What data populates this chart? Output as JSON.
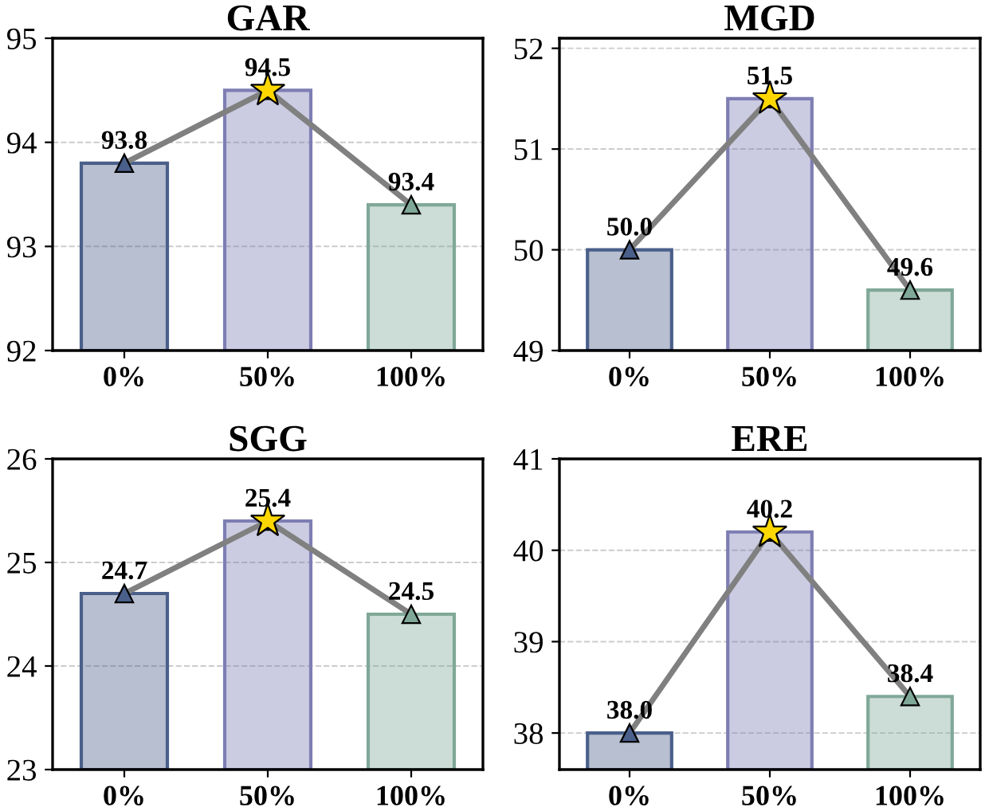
{
  "chart_data": [
    {
      "type": "bar",
      "title": "GAR",
      "categories": [
        "0%",
        "50%",
        "100%"
      ],
      "ylim": [
        92,
        95
      ],
      "yticks": [
        92,
        93,
        94,
        95
      ],
      "grid": "y",
      "series": [
        {
          "colors": [
            "#4a5f8a",
            "#7e7eb4",
            "#7fa898"
          ],
          "values": [
            93.8,
            94.5,
            93.4
          ]
        },
        {
          "type": "line",
          "color": "#808080",
          "marker": "triangle",
          "colors": [
            "#4a5f8a",
            "#7e7eb4",
            "#7fa898"
          ],
          "values": [
            93.8,
            94.5,
            93.4
          ],
          "value_labels": [
            "93.8",
            "94.5",
            "93.4"
          ]
        },
        {
          "type": "scatter",
          "color": "#ffd700",
          "marker": "star",
          "x": [
            "50%"
          ],
          "values": [
            94.5
          ]
        }
      ]
    },
    {
      "type": "bar",
      "title": "MGD",
      "categories": [
        "0%",
        "50%",
        "100%"
      ],
      "ylim": [
        49,
        52.1
      ],
      "yticks": [
        49,
        50,
        51,
        52
      ],
      "grid": "y",
      "series": [
        {
          "colors": [
            "#4a5f8a",
            "#7e7eb4",
            "#7fa898"
          ],
          "values": [
            50.0,
            51.5,
            49.6
          ]
        },
        {
          "type": "line",
          "color": "#808080",
          "marker": "triangle",
          "colors": [
            "#4a5f8a",
            "#7e7eb4",
            "#7fa898"
          ],
          "values": [
            50.0,
            51.5,
            49.6
          ],
          "value_labels": [
            "50.0",
            "51.5",
            "49.6"
          ]
        },
        {
          "type": "scatter",
          "color": "#ffd700",
          "marker": "star",
          "x": [
            "50%"
          ],
          "values": [
            51.5
          ]
        }
      ]
    },
    {
      "type": "bar",
      "title": "SGG",
      "categories": [
        "0%",
        "50%",
        "100%"
      ],
      "ylim": [
        23,
        26
      ],
      "yticks": [
        23,
        24,
        25,
        26
      ],
      "grid": "y",
      "series": [
        {
          "colors": [
            "#4a5f8a",
            "#7e7eb4",
            "#7fa898"
          ],
          "values": [
            24.7,
            25.4,
            24.5
          ]
        },
        {
          "type": "line",
          "color": "#808080",
          "marker": "triangle",
          "colors": [
            "#4a5f8a",
            "#7e7eb4",
            "#7fa898"
          ],
          "values": [
            24.7,
            25.4,
            24.5
          ],
          "value_labels": [
            "24.7",
            "25.4",
            "24.5"
          ]
        },
        {
          "type": "scatter",
          "color": "#ffd700",
          "marker": "star",
          "x": [
            "50%"
          ],
          "values": [
            25.4
          ]
        }
      ]
    },
    {
      "type": "bar",
      "title": "ERE",
      "categories": [
        "0%",
        "50%",
        "100%"
      ],
      "ylim": [
        37.6,
        41
      ],
      "yticks": [
        38,
        39,
        40,
        41
      ],
      "grid": "y",
      "series": [
        {
          "colors": [
            "#4a5f8a",
            "#7e7eb4",
            "#7fa898"
          ],
          "values": [
            38.0,
            40.2,
            38.4
          ]
        },
        {
          "type": "line",
          "color": "#808080",
          "marker": "triangle",
          "colors": [
            "#4a5f8a",
            "#7e7eb4",
            "#7fa898"
          ],
          "values": [
            38.0,
            40.2,
            38.4
          ],
          "value_labels": [
            "38.0",
            "40.2",
            "38.4"
          ]
        },
        {
          "type": "scatter",
          "color": "#ffd700",
          "marker": "star",
          "x": [
            "50%"
          ],
          "values": [
            40.2
          ]
        }
      ]
    }
  ]
}
